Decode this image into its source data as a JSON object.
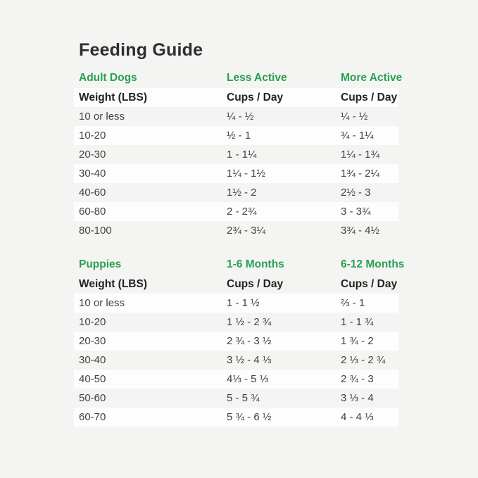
{
  "page": {
    "title": "Feeding Guide"
  },
  "colors": {
    "accent_green": "#28a052",
    "title_text": "#2e2e2e",
    "header_text": "#232323",
    "body_text": "#414141",
    "page_background": "#f4f4f2",
    "stripe_white": "#fdfdfd"
  },
  "chart_data": [
    {
      "type": "table",
      "id": "adult-dogs",
      "section_label": "Adult Dogs",
      "activity_labels": [
        "Less Active",
        "More Active"
      ],
      "columns": [
        "Weight (LBS)",
        "Cups / Day",
        "Cups / Day"
      ],
      "rows": [
        [
          "10 or less",
          "¼ - ½",
          "¼ - ½"
        ],
        [
          "10-20",
          "½ - 1",
          "¾ - 1¼"
        ],
        [
          "20-30",
          "1 - 1¼",
          "1¼ - 1¾"
        ],
        [
          "30-40",
          "1¼ - 1½",
          "1¾ - 2¼"
        ],
        [
          "40-60",
          "1½ - 2",
          "2½ - 3"
        ],
        [
          "60-80",
          "2 - 2¾",
          "3 - 3¾"
        ],
        [
          "80-100",
          "2¾ - 3¼",
          "3¾ - 4½"
        ]
      ]
    },
    {
      "type": "table",
      "id": "puppies",
      "section_label": "Puppies",
      "activity_labels": [
        "1-6 Months",
        "6-12 Months"
      ],
      "columns": [
        "Weight (LBS)",
        "Cups / Day",
        "Cups / Day"
      ],
      "rows": [
        [
          "10 or less",
          "1 - 1 ½",
          "⅔ - 1"
        ],
        [
          "10-20",
          "1 ½ - 2 ¾",
          "1 - 1 ¾"
        ],
        [
          "20-30",
          "2 ¾ - 3 ½",
          "1 ¾ - 2"
        ],
        [
          "30-40",
          "3 ½ - 4 ⅓",
          "2 ⅓ - 2 ¾"
        ],
        [
          "40-50",
          "4⅓ - 5 ⅓",
          "2 ¾ - 3"
        ],
        [
          "50-60",
          "5 - 5 ¾",
          "3 ⅓ - 4"
        ],
        [
          "60-70",
          "5 ¾ - 6 ½",
          "4 - 4 ⅓"
        ]
      ]
    }
  ]
}
